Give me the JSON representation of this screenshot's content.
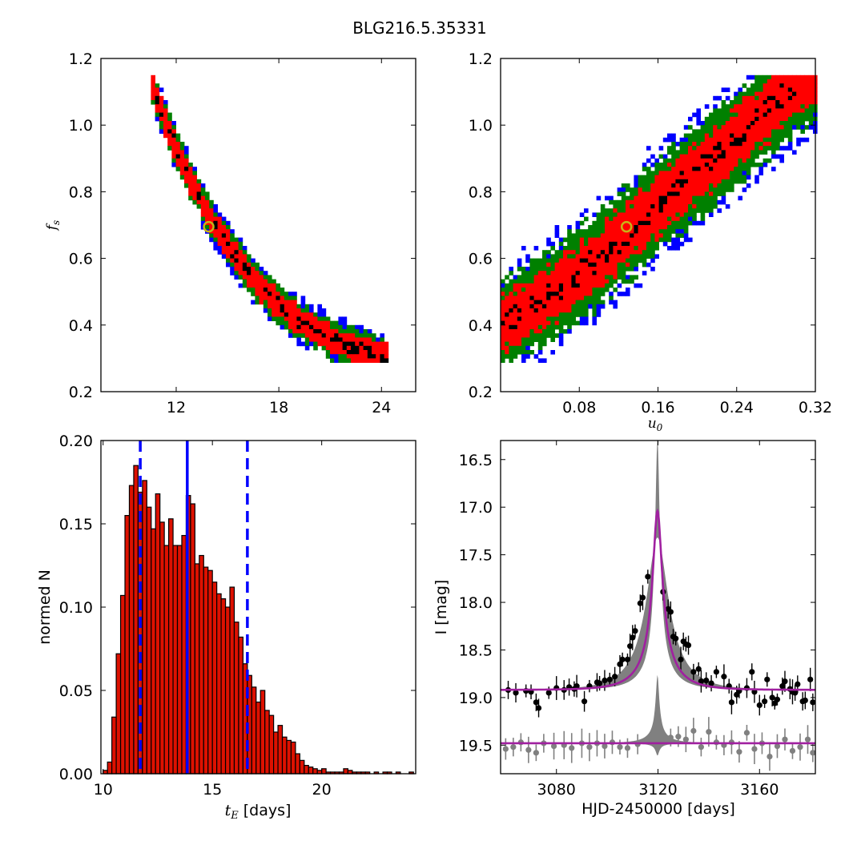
{
  "page": {
    "title": "BLG216.5.35331"
  },
  "colors": {
    "sigma1": "#000000",
    "sigma2": "#ff0000",
    "sigma3": "#008000",
    "sigma4": "#0000ff",
    "hist_fill": "#dd1100",
    "hist_line": "#0000ff",
    "model": "#a020a0",
    "spread": "#808080",
    "marker": "#c8b418"
  },
  "chart_data": [
    {
      "type": "heatmap",
      "id": "tE-fs",
      "xlabel": "",
      "ylabel": "f_s",
      "xlim": [
        7.6,
        26.0
      ],
      "ylim": [
        0.2,
        1.2
      ],
      "xticks": [
        "12",
        "18",
        "24"
      ],
      "xtick_values": [
        12,
        18,
        24
      ],
      "yticks": [
        "0.2",
        "0.4",
        "0.6",
        "0.8",
        "1.0",
        "1.2"
      ],
      "ytick_values": [
        0.2,
        0.4,
        0.6,
        0.8,
        1.0,
        1.2
      ],
      "band_centerline": {
        "x": [
          10.5,
          11.0,
          12.0,
          13.0,
          14.0,
          15.0,
          16.0,
          17.0,
          18.0,
          19.0,
          20.0,
          21.0,
          22.0,
          23.0,
          24.0
        ],
        "y": [
          1.14,
          1.06,
          0.93,
          0.82,
          0.72,
          0.64,
          0.57,
          0.51,
          0.46,
          0.42,
          0.39,
          0.36,
          0.34,
          0.32,
          0.3
        ]
      },
      "best_fit": {
        "x": 13.9,
        "y": 0.695
      },
      "legend": "none",
      "grid": false
    },
    {
      "type": "heatmap",
      "id": "u0-fs",
      "xlabel": "u_0",
      "ylabel": "",
      "xlim": [
        0.0,
        0.32
      ],
      "ylim": [
        0.2,
        1.2
      ],
      "xticks": [
        "0.08",
        "0.16",
        "0.24",
        "0.32"
      ],
      "xtick_values": [
        0.08,
        0.16,
        0.24,
        0.32
      ],
      "yticks": [
        "0.2",
        "0.4",
        "0.6",
        "0.8",
        "1.0",
        "1.2"
      ],
      "ytick_values": [
        0.2,
        0.4,
        0.6,
        0.8,
        1.0,
        1.2
      ],
      "band_centerline": {
        "x": [
          0.0,
          0.04,
          0.08,
          0.12,
          0.16,
          0.2,
          0.24,
          0.28,
          0.3
        ],
        "y": [
          0.4,
          0.47,
          0.55,
          0.65,
          0.76,
          0.86,
          0.96,
          1.07,
          1.12
        ]
      },
      "best_fit": {
        "x": 0.128,
        "y": 0.695
      },
      "legend": "none",
      "grid": false
    },
    {
      "type": "bar",
      "id": "tE-histogram",
      "xlabel": "t_E  [days]",
      "ylabel": "normed N",
      "xlim": [
        9.9,
        24.3
      ],
      "ylim": [
        0.0,
        0.2
      ],
      "xticks": [
        "10",
        "15",
        "20"
      ],
      "xtick_values": [
        10,
        15,
        20
      ],
      "yticks": [
        "0.00",
        "0.05",
        "0.10",
        "0.15",
        "0.20"
      ],
      "ytick_values": [
        0.0,
        0.05,
        0.1,
        0.15,
        0.2
      ],
      "bin_start": 10.0,
      "bin_width": 0.2,
      "values": [
        0.002,
        0.007,
        0.034,
        0.072,
        0.107,
        0.155,
        0.173,
        0.185,
        0.169,
        0.176,
        0.16,
        0.147,
        0.168,
        0.151,
        0.137,
        0.153,
        0.137,
        0.137,
        0.143,
        0.167,
        0.162,
        0.126,
        0.131,
        0.124,
        0.122,
        0.115,
        0.108,
        0.105,
        0.1,
        0.112,
        0.091,
        0.082,
        0.066,
        0.059,
        0.052,
        0.043,
        0.05,
        0.038,
        0.035,
        0.025,
        0.029,
        0.022,
        0.02,
        0.019,
        0.012,
        0.008,
        0.005,
        0.004,
        0.003,
        0.002,
        0.003,
        0.001,
        0.001,
        0.001,
        0.001,
        0.003,
        0.002,
        0.001,
        0.001,
        0.001,
        0.001,
        0.0,
        0.001,
        0.0,
        0.001,
        0.001,
        0.0,
        0.001,
        0.0,
        0.0,
        0.001,
        0.0
      ],
      "median": 13.85,
      "lower": 11.7,
      "upper": 16.6,
      "legend": "none",
      "grid": false
    },
    {
      "type": "line",
      "id": "light-curve",
      "xlabel": "HJD-2450000 [days]",
      "ylabel": "I [mag]",
      "xlim": [
        3058,
        3182
      ],
      "ylim": [
        19.8,
        16.3
      ],
      "xticks": [
        "3080",
        "3120",
        "3160"
      ],
      "xtick_values": [
        3080,
        3120,
        3160
      ],
      "yticks": [
        "16.5",
        "17.0",
        "17.5",
        "18.0",
        "18.5",
        "19.0",
        "19.5"
      ],
      "ytick_values": [
        16.5,
        17.0,
        17.5,
        18.0,
        18.5,
        19.0,
        19.5
      ],
      "model": {
        "t0": 3119.8,
        "base_mag": 18.92,
        "peak_mag": 17.04,
        "tE": 13.9,
        "u0": 0.128,
        "fs": 0.695
      },
      "spread_peak_mag": 16.28,
      "residual_baseline_mag": 19.48,
      "residual_spread_peak": 18.76,
      "points": [
        {
          "t": 3061,
          "m": 18.92
        },
        {
          "t": 3064,
          "m": 18.95
        },
        {
          "t": 3068,
          "m": 18.93
        },
        {
          "t": 3070,
          "m": 18.94
        },
        {
          "t": 3072,
          "m": 19.05
        },
        {
          "t": 3073,
          "m": 19.11
        },
        {
          "t": 3077,
          "m": 18.95
        },
        {
          "t": 3080,
          "m": 18.9
        },
        {
          "t": 3083,
          "m": 18.92
        },
        {
          "t": 3085,
          "m": 18.89
        },
        {
          "t": 3087,
          "m": 18.91
        },
        {
          "t": 3088,
          "m": 18.88
        },
        {
          "t": 3091,
          "m": 19.04
        },
        {
          "t": 3093,
          "m": 18.88
        },
        {
          "t": 3096,
          "m": 18.84
        },
        {
          "t": 3097,
          "m": 18.85
        },
        {
          "t": 3099,
          "m": 18.82
        },
        {
          "t": 3101,
          "m": 18.81
        },
        {
          "t": 3103,
          "m": 18.78
        },
        {
          "t": 3105,
          "m": 18.65
        },
        {
          "t": 3106,
          "m": 18.6
        },
        {
          "t": 3108,
          "m": 18.6
        },
        {
          "t": 3109,
          "m": 18.46
        },
        {
          "t": 3110,
          "m": 18.37
        },
        {
          "t": 3111,
          "m": 18.3
        },
        {
          "t": 3113,
          "m": 18.01
        },
        {
          "t": 3114,
          "m": 17.95
        },
        {
          "t": 3116,
          "m": 17.73
        },
        {
          "t": 3122,
          "m": 17.89
        },
        {
          "t": 3124,
          "m": 18.07
        },
        {
          "t": 3125,
          "m": 18.1
        },
        {
          "t": 3126,
          "m": 18.36
        },
        {
          "t": 3127,
          "m": 18.38
        },
        {
          "t": 3129,
          "m": 18.6
        },
        {
          "t": 3130,
          "m": 18.41
        },
        {
          "t": 3131,
          "m": 18.44
        },
        {
          "t": 3132,
          "m": 18.45
        },
        {
          "t": 3134,
          "m": 18.73
        },
        {
          "t": 3136,
          "m": 18.7
        },
        {
          "t": 3137,
          "m": 18.83
        },
        {
          "t": 3139,
          "m": 18.82
        },
        {
          "t": 3141,
          "m": 18.85
        },
        {
          "t": 3143,
          "m": 18.73
        },
        {
          "t": 3146,
          "m": 18.78
        },
        {
          "t": 3148,
          "m": 18.88
        },
        {
          "t": 3149,
          "m": 19.05
        },
        {
          "t": 3151,
          "m": 18.97
        },
        {
          "t": 3152,
          "m": 18.93
        },
        {
          "t": 3155,
          "m": 18.9
        },
        {
          "t": 3157,
          "m": 18.73
        },
        {
          "t": 3158,
          "m": 18.94
        },
        {
          "t": 3160,
          "m": 19.08
        },
        {
          "t": 3162,
          "m": 19.04
        },
        {
          "t": 3163,
          "m": 18.81
        },
        {
          "t": 3165,
          "m": 19.0
        },
        {
          "t": 3166,
          "m": 19.06
        },
        {
          "t": 3167,
          "m": 19.02
        },
        {
          "t": 3169,
          "m": 18.88
        },
        {
          "t": 3170,
          "m": 18.83
        },
        {
          "t": 3172,
          "m": 18.91
        },
        {
          "t": 3173,
          "m": 18.94
        },
        {
          "t": 3174,
          "m": 18.95
        },
        {
          "t": 3175,
          "m": 18.86
        },
        {
          "t": 3177,
          "m": 19.04
        },
        {
          "t": 3178,
          "m": 19.03
        },
        {
          "t": 3180,
          "m": 18.81
        },
        {
          "t": 3181,
          "m": 19.05
        }
      ],
      "residual_points": [
        {
          "t": 3060,
          "m": 19.54
        },
        {
          "t": 3063,
          "m": 19.52
        },
        {
          "t": 3066,
          "m": 19.47
        },
        {
          "t": 3069,
          "m": 19.55
        },
        {
          "t": 3072,
          "m": 19.58
        },
        {
          "t": 3075,
          "m": 19.48
        },
        {
          "t": 3079,
          "m": 19.51
        },
        {
          "t": 3083,
          "m": 19.5
        },
        {
          "t": 3086,
          "m": 19.53
        },
        {
          "t": 3090,
          "m": 19.48
        },
        {
          "t": 3093,
          "m": 19.52
        },
        {
          "t": 3096,
          "m": 19.48
        },
        {
          "t": 3099,
          "m": 19.51
        },
        {
          "t": 3102,
          "m": 19.47
        },
        {
          "t": 3105,
          "m": 19.52
        },
        {
          "t": 3108,
          "m": 19.53
        },
        {
          "t": 3112,
          "m": 19.49
        },
        {
          "t": 3125,
          "m": 19.42
        },
        {
          "t": 3128,
          "m": 19.41
        },
        {
          "t": 3131,
          "m": 19.44
        },
        {
          "t": 3134,
          "m": 19.35
        },
        {
          "t": 3137,
          "m": 19.52
        },
        {
          "t": 3140,
          "m": 19.36
        },
        {
          "t": 3143,
          "m": 19.47
        },
        {
          "t": 3146,
          "m": 19.5
        },
        {
          "t": 3149,
          "m": 19.47
        },
        {
          "t": 3152,
          "m": 19.57
        },
        {
          "t": 3155,
          "m": 19.37
        },
        {
          "t": 3158,
          "m": 19.54
        },
        {
          "t": 3161,
          "m": 19.48
        },
        {
          "t": 3164,
          "m": 19.62
        },
        {
          "t": 3167,
          "m": 19.51
        },
        {
          "t": 3170,
          "m": 19.44
        },
        {
          "t": 3173,
          "m": 19.56
        },
        {
          "t": 3176,
          "m": 19.52
        },
        {
          "t": 3179,
          "m": 19.44
        },
        {
          "t": 3181,
          "m": 19.58
        }
      ],
      "legend": "none",
      "grid": false
    }
  ]
}
